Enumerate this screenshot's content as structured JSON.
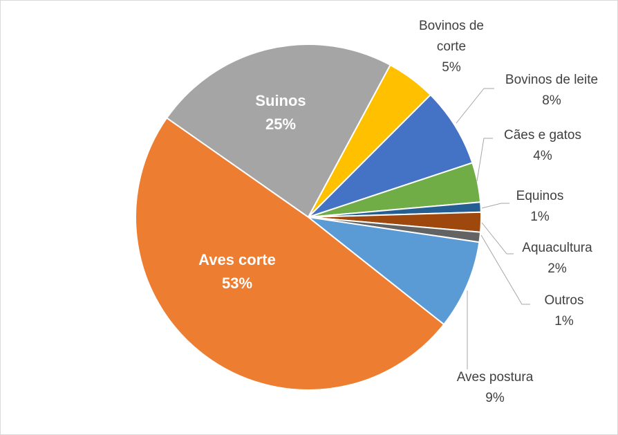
{
  "chart_data": {
    "type": "pie",
    "categories": [
      "Suinos",
      "Bovinos de corte",
      "Bovinos de leite",
      "Cães e gatos",
      "Equinos",
      "Aquacultura",
      "Outros",
      "Aves postura",
      "Aves corte"
    ],
    "values": [
      25,
      5,
      8,
      4,
      1,
      2,
      1,
      9,
      53
    ],
    "value_labels": [
      "25%",
      "5%",
      "8%",
      "4%",
      "1%",
      "2%",
      "1%",
      "9%",
      "53%"
    ],
    "colors": [
      "#a5a5a5",
      "#ffc000",
      "#4472c4",
      "#70ad47",
      "#255e91",
      "#9e480e",
      "#636363",
      "#5b9bd5",
      "#ed7d31"
    ]
  }
}
